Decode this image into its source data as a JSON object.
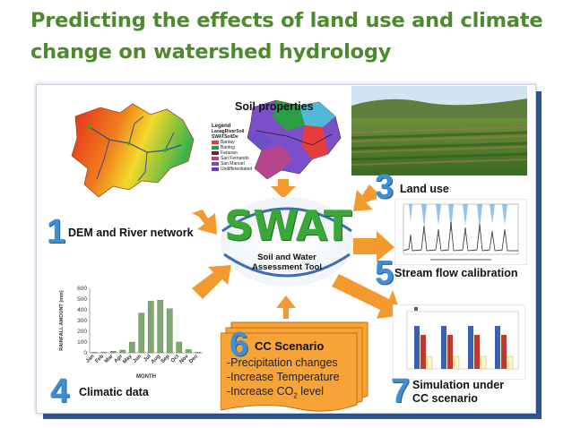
{
  "slide": {
    "title": "Predicting the effects of land use and climate change on watershed hydrology"
  },
  "center": {
    "swat": "SWAT",
    "subtitle_line1": "Soil and Water",
    "subtitle_line2": "Assessment Tool"
  },
  "items": {
    "dem": {
      "number": "1",
      "label": "DEM and River network"
    },
    "land_use": {
      "number": "3",
      "label": "Land use"
    },
    "calibration": {
      "number": "5",
      "label": "Stream flow calibration"
    },
    "climatic": {
      "number": "4",
      "label": "Climatic data"
    },
    "cc": {
      "number": "6",
      "label": "CC Scenario",
      "line1": "-Precipitation changes",
      "line2": "-Increase Temperature",
      "line3_prefix": "-Increase CO",
      "line3_sub": "2",
      "line3_suffix": " level"
    },
    "simulation": {
      "number": "7",
      "label_line1": "Simulation under",
      "label_line2": "CC scenario"
    }
  },
  "soil_map": {
    "title": "Soil properties",
    "legend_title": "Legend",
    "legend_sub1": "LaoagRiverSoil",
    "legend_sub2": "SWATSoilDe",
    "legend_items": [
      "Bantay",
      "Bantog",
      "Faraoan",
      "San Fernando",
      "San Manuel",
      "Undifferentiated"
    ],
    "legend_colors": [
      "#e83c3c",
      "#2a9d45",
      "#7a1f2b",
      "#b5458c",
      "#6a4fc9",
      "#7a2fd0"
    ]
  },
  "rainfall_chart": {
    "ylabel": "RAINFALL AMOUNT (mm)",
    "xlabel": "MONTH",
    "yticks": [
      "0",
      "100",
      "200",
      "300",
      "400",
      "500",
      "600"
    ]
  },
  "chart_data": {
    "type": "bar",
    "categories": [
      "Jan",
      "Feb",
      "Mar",
      "Apr",
      "May",
      "Jun",
      "Jul",
      "Aug",
      "Sep",
      "Oct",
      "Nov",
      "Dec"
    ],
    "values": [
      5,
      5,
      15,
      25,
      100,
      370,
      480,
      490,
      410,
      100,
      30,
      5
    ],
    "xlabel": "MONTH",
    "ylabel": "RAINFALL AMOUNT (mm)",
    "ylim": [
      0,
      600
    ]
  },
  "colors": {
    "title_green": "#4d8a2e",
    "arrow_orange": "#f29a2e",
    "number_blue": "#3f8fd2",
    "swat_green": "#3aa839",
    "panel_shadow": "#2f5597",
    "bar_green": "#7fa870"
  }
}
